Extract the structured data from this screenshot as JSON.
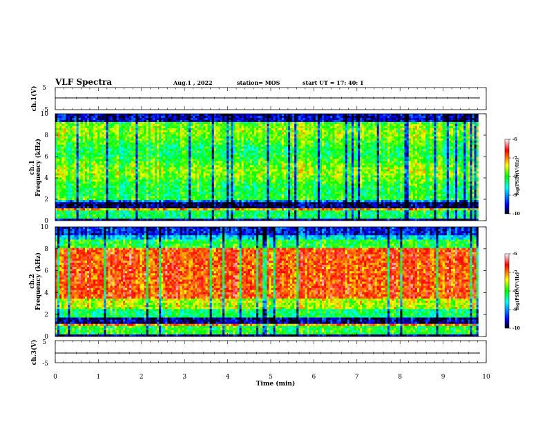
{
  "header": {
    "title": "VLF Spectra",
    "date": "Aug.1  , 2022",
    "station": "station= MOS",
    "start_ut": "start  UT =   17: 40: 1"
  },
  "chart_data": [
    {
      "type": "line",
      "name": "ch1-voltage",
      "ylabel": "ch.1(V)",
      "ylim": [
        -5,
        5
      ],
      "yticks": [
        5,
        -5
      ],
      "xlim": [
        0,
        10
      ],
      "level": 0
    },
    {
      "type": "heatmap",
      "name": "ch1-spectrogram",
      "ylabel_line1": "ch.1",
      "ylabel_line2": "Frequency (kHz)",
      "ylim": [
        0,
        10
      ],
      "yticks": [
        0,
        2,
        4,
        6,
        8,
        10
      ],
      "xlim": [
        0,
        10
      ],
      "data_end_min": 9.82,
      "colorbar": {
        "label": "log(PSD)(V²/Hz)",
        "range": [
          -10,
          -6
        ],
        "ticks": [
          "-6",
          "-7",
          "-8",
          "-9",
          "-10"
        ]
      },
      "band_profile": "ch1"
    },
    {
      "type": "heatmap",
      "name": "ch2-spectrogram",
      "ylabel_line1": "ch.2",
      "ylabel_line2": "Frequency (kHz)",
      "ylim": [
        0,
        10
      ],
      "yticks": [
        0,
        2,
        4,
        6,
        8,
        10
      ],
      "xlim": [
        0,
        10
      ],
      "data_end_min": 9.82,
      "colorbar": {
        "label": "log(PSD)(V²/Hz)",
        "range": [
          -10,
          -6
        ],
        "ticks": [
          "-6",
          "-7",
          "-8",
          "-9",
          "-10"
        ]
      },
      "band_profile": "ch2"
    },
    {
      "type": "line",
      "name": "ch3-voltage",
      "ylabel": "ch.3(V)",
      "ylim": [
        -5,
        5
      ],
      "yticks": [
        5,
        -5
      ],
      "xlim": [
        0,
        10
      ],
      "level": 0
    }
  ],
  "xaxis": {
    "label": "Time (min)",
    "ticks": [
      "0",
      "1",
      "2",
      "3",
      "4",
      "5",
      "6",
      "7",
      "8",
      "9",
      "10"
    ]
  },
  "colors": {
    "colormap": [
      "#000000",
      "#0000ff",
      "#00ffff",
      "#00ff00",
      "#ffff00",
      "#ff0000",
      "#ffffff"
    ]
  }
}
